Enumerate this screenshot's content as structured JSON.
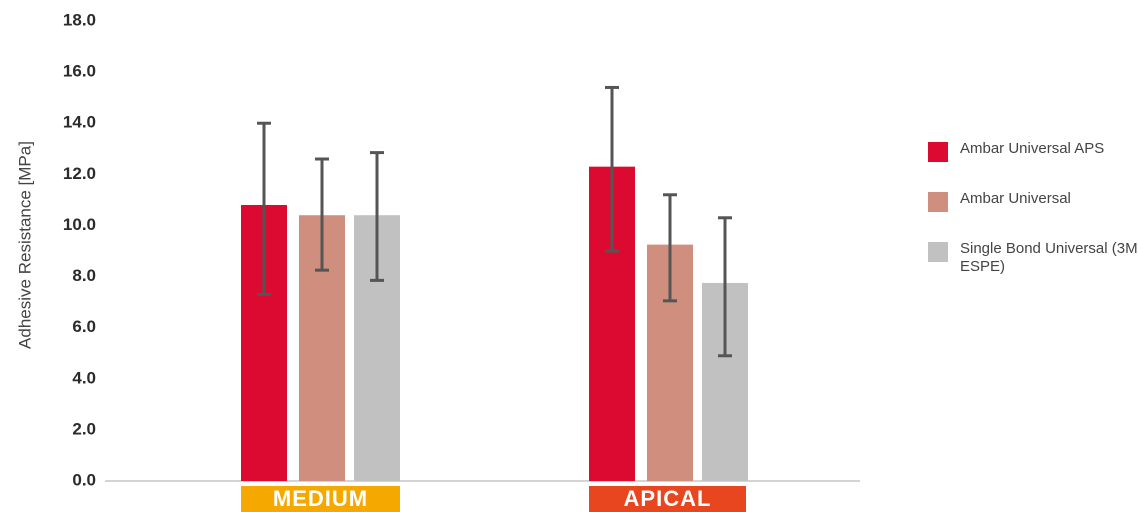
{
  "chart_data": {
    "type": "bar",
    "title": "",
    "xlabel": "",
    "ylabel": "Adhesive Resistance [MPa]",
    "ylim": [
      0,
      18
    ],
    "yticks": [
      "0.0",
      "2.0",
      "4.0",
      "6.0",
      "8.0",
      "10.0",
      "12.0",
      "14.0",
      "16.0",
      "18.0"
    ],
    "grid": false,
    "legend_position": "right",
    "categories": [
      "MEDIUM",
      "APICAL"
    ],
    "category_colors": [
      "#F5A800",
      "#E8461E"
    ],
    "series": [
      {
        "name": "Ambar Universal APS",
        "color": "#DC0A31",
        "values": [
          10.8,
          12.3
        ],
        "error_low": [
          7.3,
          9.0
        ],
        "error_high": [
          14.0,
          15.4
        ]
      },
      {
        "name": "Ambar Universal",
        "color": "#D08F7E",
        "values": [
          10.4,
          9.25
        ],
        "error_low": [
          8.25,
          7.05
        ],
        "error_high": [
          12.6,
          11.2
        ]
      },
      {
        "name": "Single Bond Universal (3M ESPE)",
        "color": "#C1C1C1",
        "values": [
          10.4,
          7.75
        ],
        "error_low": [
          7.85,
          4.9
        ],
        "error_high": [
          12.85,
          10.3
        ]
      }
    ]
  }
}
